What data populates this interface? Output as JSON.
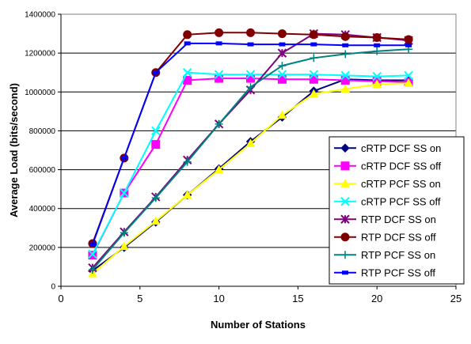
{
  "chart_data": {
    "type": "line",
    "xlabel": "Number of Stations",
    "ylabel": "Average Load (bits/second)",
    "xlim": [
      0,
      25
    ],
    "ylim": [
      0,
      1400000
    ],
    "xticks": [
      "0",
      "5",
      "10",
      "15",
      "20",
      "25"
    ],
    "yticks": [
      "0",
      "200000",
      "400000",
      "600000",
      "800000",
      "1000000",
      "1200000",
      "1400000"
    ],
    "grid": "horizontal",
    "legend_position": "right",
    "x": [
      2,
      4,
      6,
      8,
      10,
      12,
      14,
      16,
      18,
      20,
      22
    ],
    "series": [
      {
        "name": "cRTP DCF SS on",
        "color": "#000080",
        "marker": "diamond",
        "values": [
          80000,
          200000,
          330000,
          470000,
          605000,
          745000,
          870000,
          1005000,
          1065000,
          1060000,
          1060000
        ]
      },
      {
        "name": "cRTP DCF SS off",
        "color": "#FF00FF",
        "marker": "square",
        "values": [
          160000,
          480000,
          730000,
          1060000,
          1070000,
          1070000,
          1065000,
          1065000,
          1060000,
          1055000,
          1050000
        ]
      },
      {
        "name": "cRTP PCF SS on",
        "color": "#FFFF00",
        "marker": "triangle",
        "values": [
          65000,
          205000,
          335000,
          470000,
          600000,
          735000,
          880000,
          990000,
          1015000,
          1040000,
          1045000
        ]
      },
      {
        "name": "cRTP PCF SS off",
        "color": "#00FFFF",
        "marker": "x",
        "values": [
          165000,
          480000,
          800000,
          1100000,
          1090000,
          1090000,
          1090000,
          1090000,
          1085000,
          1080000,
          1085000
        ]
      },
      {
        "name": "RTP DCF SS on",
        "color": "#800080",
        "marker": "star",
        "values": [
          95000,
          280000,
          460000,
          650000,
          835000,
          1010000,
          1200000,
          1300000,
          1295000,
          1280000,
          1265000
        ]
      },
      {
        "name": "RTP DCF SS off",
        "color": "#800000",
        "marker": "circle",
        "values": [
          220000,
          660000,
          1100000,
          1295000,
          1305000,
          1305000,
          1300000,
          1295000,
          1285000,
          1280000,
          1270000
        ]
      },
      {
        "name": "RTP PCF SS on",
        "color": "#008080",
        "marker": "plus",
        "values": [
          85000,
          275000,
          455000,
          640000,
          835000,
          1025000,
          1135000,
          1175000,
          1195000,
          1210000,
          1220000
        ]
      },
      {
        "name": "RTP PCF SS off",
        "color": "#0000FF",
        "marker": "dash",
        "values": [
          215000,
          660000,
          1100000,
          1250000,
          1250000,
          1245000,
          1245000,
          1245000,
          1240000,
          1240000,
          1240000
        ]
      }
    ]
  }
}
